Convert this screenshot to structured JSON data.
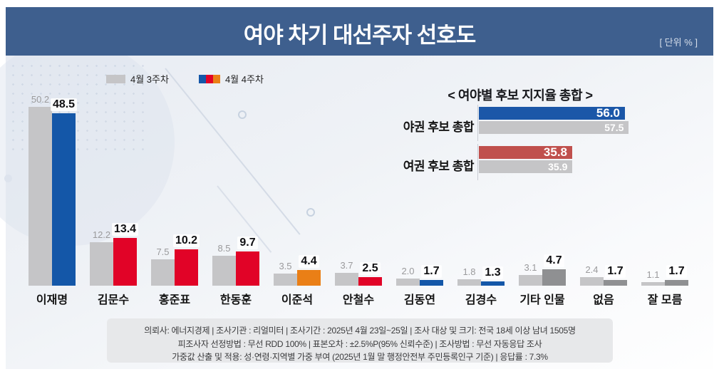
{
  "header": {
    "title": "여야 차기 대선주자 선호도",
    "unit_label": "[ 단위 % ]"
  },
  "legend": {
    "prev_label": "4월 3주차",
    "curr_label": "4월 4주차"
  },
  "palette": {
    "blue": "#1457a8",
    "red": "#e10327",
    "orange": "#ea7f16",
    "gray": "#8f9092",
    "prev_gray": "#c5c5c7",
    "summary_blue": "#1b57a8",
    "summary_red": "#c0504d",
    "header_bg": "#3e5f8e"
  },
  "chart_data": [
    {
      "type": "bar",
      "title": "여야 차기 대선주자 선호도",
      "unit": "%",
      "categories": [
        "이재명",
        "김문수",
        "홍준표",
        "한동훈",
        "이준석",
        "안철수",
        "김동연",
        "김경수",
        "기타 인물",
        "없음",
        "잘 모름"
      ],
      "series": [
        {
          "name": "4월 3주차",
          "values": [
            50.2,
            12.2,
            7.5,
            8.5,
            3.5,
            3.7,
            2.0,
            1.8,
            3.1,
            2.4,
            1.1
          ]
        },
        {
          "name": "4월 4주차",
          "values": [
            48.5,
            13.4,
            10.2,
            9.7,
            4.4,
            2.5,
            1.7,
            1.3,
            4.7,
            1.7,
            1.7
          ]
        }
      ],
      "current_colors": [
        "blue",
        "red",
        "red",
        "red",
        "orange",
        "red",
        "blue",
        "blue",
        "gray",
        "gray",
        "gray"
      ],
      "legend_position": "top-left",
      "grid": false
    },
    {
      "type": "bar",
      "orientation": "horizontal",
      "title": "< 여야별 후보 지지율 총합 >",
      "categories": [
        "야권 후보 총합",
        "여권 후보 총합"
      ],
      "series": [
        {
          "name": "4월 4주차",
          "values": [
            56.0,
            35.8
          ]
        },
        {
          "name": "4월 3주차",
          "values": [
            57.5,
            35.9
          ]
        }
      ],
      "current_colors": [
        "summary_blue",
        "summary_red"
      ]
    }
  ],
  "summary_chart": {
    "title": "< 여야별 후보 지지율 총합 >",
    "groups": [
      {
        "label": "야권 후보 총합",
        "current": 56.0,
        "previous": 57.5,
        "color_key": "summary_blue"
      },
      {
        "label": "여권 후보 총합",
        "current": 35.8,
        "previous": 35.9,
        "color_key": "summary_red"
      }
    ]
  },
  "footer": {
    "lines": [
      "의뢰사: 에너지경제 | 조사기관 : 리얼미터  | 조사기간 : 2025년 4월 23일~25일 | 조사 대상 및 크기: 전국 18세 이상 남녀 1505명",
      "피조사자 선정방법 : 무선 RDD 100% | 표본오차 : ±2.5%P(95% 신뢰수준) | 조사방법 : 무선 자동응답 조사",
      "가중값 산출 및 적용: 성·연령·지역별 가중 부여 (2025년 1월 말 행정안전부 주민등록인구 기준) | 응답률 : 7.3%"
    ]
  }
}
